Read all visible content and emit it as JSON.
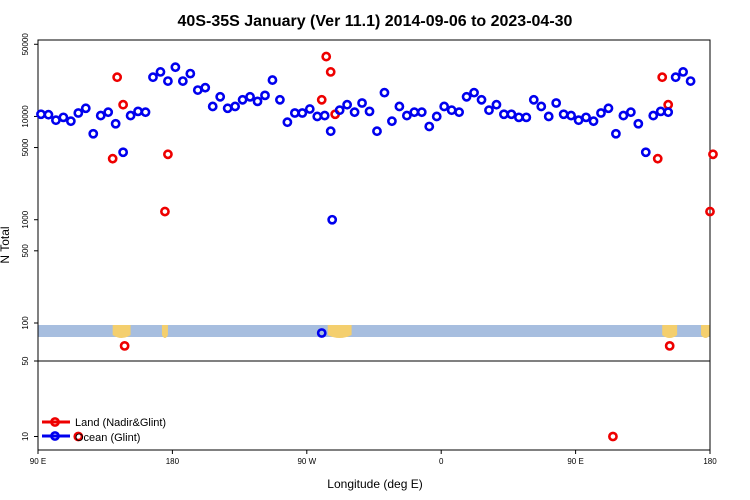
{
  "chart_data": {
    "type": "scatter",
    "title": "40S-35S January (Ver 11.1)   2014-09-06 to 2023-04-30",
    "xlabel": "Longitude (deg E)",
    "ylabel": "N Total",
    "x_ticks": [
      {
        "lon": 90,
        "label": "90 E"
      },
      {
        "lon": 180,
        "label": "180"
      },
      {
        "lon": 270,
        "label": "90 W"
      },
      {
        "lon": 360,
        "label": "0"
      },
      {
        "lon": 450,
        "label": "90 E"
      },
      {
        "lon": 540,
        "label": "180"
      }
    ],
    "xlim": [
      90,
      540
    ],
    "y_scale": "log",
    "upper_panel": {
      "ylim": [
        80,
        55000
      ],
      "y_ticks": [
        {
          "value": 100,
          "label": "100"
        },
        {
          "value": 500,
          "label": "500"
        },
        {
          "value": 1000,
          "label": "1000"
        },
        {
          "value": 5000,
          "label": "5000"
        },
        {
          "value": 10000,
          "label": "10000"
        },
        {
          "value": 50000,
          "label": "50000"
        }
      ]
    },
    "lower_panel": {
      "ylim": [
        7.5,
        50
      ],
      "y_ticks": [
        {
          "value": 10,
          "label": "10"
        },
        {
          "value": 50,
          "label": "50"
        }
      ]
    },
    "legend_placement": "bottom-left",
    "series": [
      {
        "name": "Land (Nadir&Glint)",
        "color": "#ee0000",
        "points": [
          [
            140,
            3900
          ],
          [
            143,
            24000
          ],
          [
            147,
            13000
          ],
          [
            148,
            60
          ],
          [
            175,
            1200
          ],
          [
            177,
            4300
          ],
          [
            280,
            14500
          ],
          [
            283,
            38000
          ],
          [
            286,
            27000
          ],
          [
            289,
            10500
          ],
          [
            540,
            1200
          ],
          [
            542,
            4300
          ],
          [
            117,
            10
          ],
          [
            475,
            10
          ],
          [
            505,
            3900
          ],
          [
            508,
            24000
          ],
          [
            512,
            13000
          ],
          [
            513,
            60
          ]
        ]
      },
      {
        "name": "Ocean (Glint)",
        "color": "#0000ee",
        "points": [
          [
            92,
            10500
          ],
          [
            97,
            10400
          ],
          [
            102,
            9200
          ],
          [
            107,
            9800
          ],
          [
            112,
            9000
          ],
          [
            117,
            10800
          ],
          [
            122,
            12000
          ],
          [
            127,
            6800
          ],
          [
            132,
            10200
          ],
          [
            137,
            11000
          ],
          [
            142,
            8500
          ],
          [
            147,
            4500
          ],
          [
            152,
            10200
          ],
          [
            157,
            11200
          ],
          [
            162,
            11000
          ],
          [
            167,
            24000
          ],
          [
            172,
            27000
          ],
          [
            177,
            22000
          ],
          [
            182,
            30000
          ],
          [
            187,
            22000
          ],
          [
            192,
            26000
          ],
          [
            197,
            18000
          ],
          [
            202,
            19000
          ],
          [
            207,
            12500
          ],
          [
            212,
            15500
          ],
          [
            217,
            12000
          ],
          [
            222,
            12500
          ],
          [
            227,
            14500
          ],
          [
            232,
            15500
          ],
          [
            237,
            14000
          ],
          [
            242,
            16000
          ],
          [
            247,
            22500
          ],
          [
            252,
            14500
          ],
          [
            257,
            8800
          ],
          [
            262,
            10800
          ],
          [
            267,
            10800
          ],
          [
            272,
            11800
          ],
          [
            277,
            10000
          ],
          [
            282,
            10200
          ],
          [
            286,
            7200
          ],
          [
            280,
            80
          ],
          [
            287,
            1000
          ],
          [
            292,
            11500
          ],
          [
            297,
            13000
          ],
          [
            302,
            11000
          ],
          [
            307,
            13500
          ],
          [
            312,
            11200
          ],
          [
            317,
            7200
          ],
          [
            322,
            17000
          ],
          [
            327,
            9000
          ],
          [
            332,
            12500
          ],
          [
            337,
            10200
          ],
          [
            342,
            11000
          ],
          [
            347,
            11000
          ],
          [
            352,
            8000
          ],
          [
            357,
            10000
          ],
          [
            362,
            12500
          ],
          [
            367,
            11500
          ],
          [
            372,
            11000
          ],
          [
            377,
            15500
          ],
          [
            382,
            17000
          ],
          [
            387,
            14500
          ],
          [
            392,
            11500
          ],
          [
            397,
            13000
          ],
          [
            402,
            10500
          ],
          [
            407,
            10500
          ],
          [
            412,
            9800
          ],
          [
            417,
            9800
          ],
          [
            422,
            14500
          ],
          [
            427,
            12500
          ],
          [
            432,
            10000
          ],
          [
            437,
            13500
          ],
          [
            442,
            10500
          ],
          [
            447,
            10200
          ],
          [
            452,
            9200
          ],
          [
            457,
            9800
          ],
          [
            462,
            9000
          ],
          [
            467,
            10800
          ],
          [
            472,
            12000
          ],
          [
            477,
            6800
          ],
          [
            482,
            10200
          ],
          [
            487,
            11000
          ],
          [
            492,
            8500
          ],
          [
            497,
            4500
          ],
          [
            502,
            10200
          ],
          [
            507,
            11200
          ],
          [
            512,
            11000
          ],
          [
            517,
            24000
          ],
          [
            522,
            27000
          ],
          [
            527,
            22000
          ]
        ]
      }
    ]
  }
}
